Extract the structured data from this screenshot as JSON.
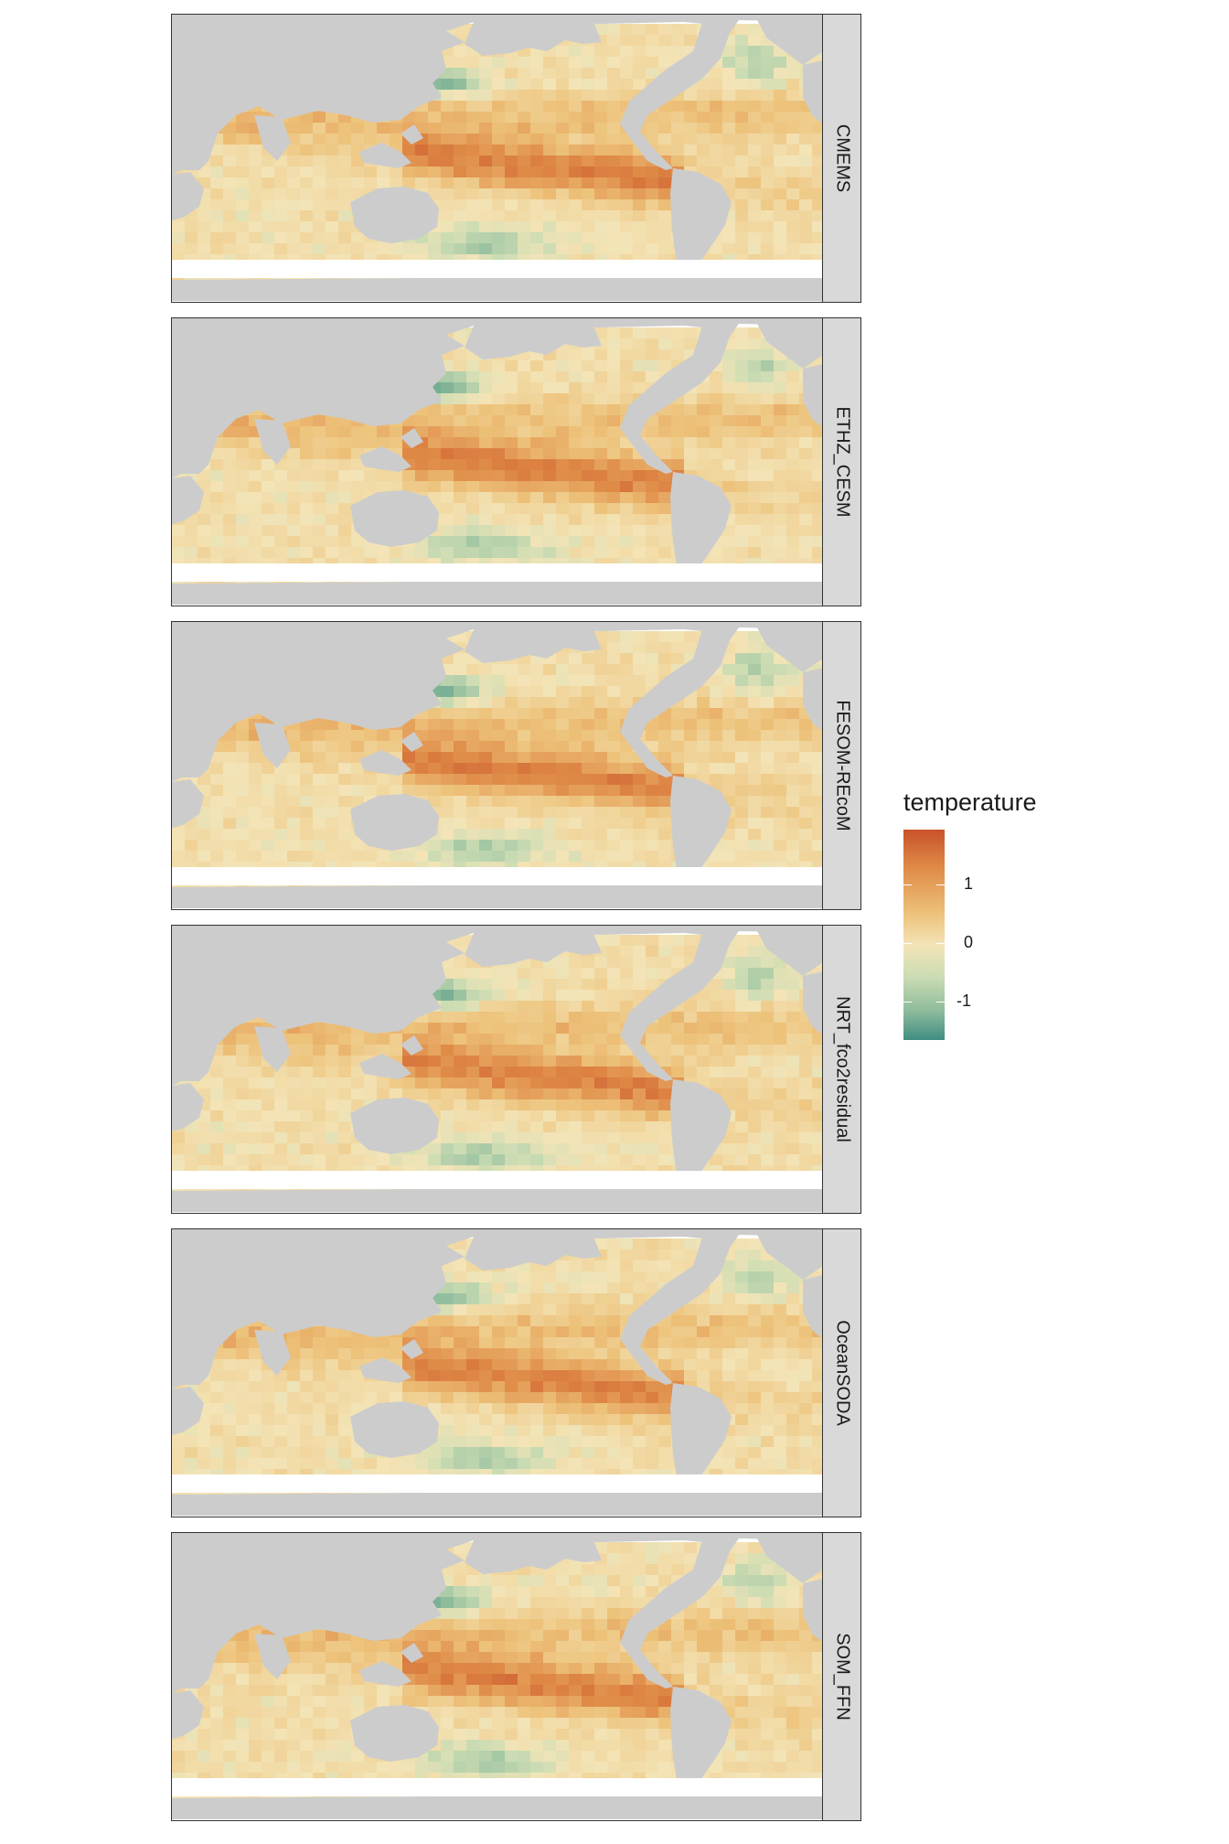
{
  "facets": [
    {
      "label": "CMEMS"
    },
    {
      "label": "ETHZ_CESM"
    },
    {
      "label": "FESOM-REcoM"
    },
    {
      "label": "NRT_fco2residual"
    },
    {
      "label": "OceanSODA"
    },
    {
      "label": "SOM_FFN"
    }
  ],
  "legend": {
    "title": "temperature",
    "ticks": [
      "1",
      "0",
      "-1"
    ],
    "range": [
      -1.7,
      1.9
    ],
    "colors": {
      "high": "#c9522a",
      "mid": "#f3e4b7",
      "low": "#3f8e82",
      "land": "#cccccc"
    }
  },
  "colors": {
    "strip_bg": "#d9d9d9",
    "land": "#cccccc",
    "frame": "#333333"
  }
}
